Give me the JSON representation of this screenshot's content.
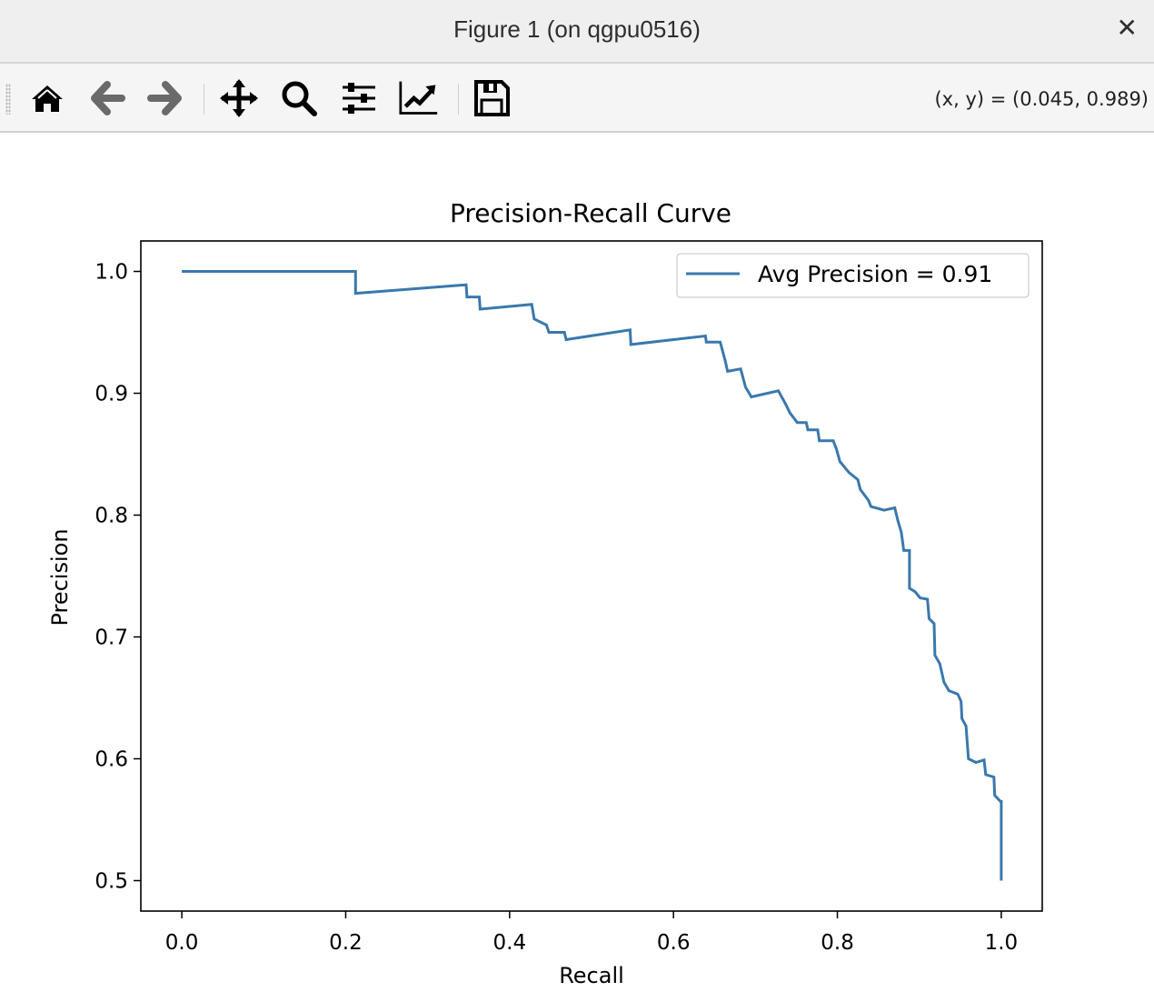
{
  "window": {
    "title": "Figure 1 (on qgpu0516)",
    "close_icon": "close-icon"
  },
  "toolbar": {
    "buttons": [
      {
        "icon": "home-icon"
      },
      {
        "icon": "back-arrow-icon"
      },
      {
        "icon": "forward-arrow-icon"
      },
      {
        "icon": "pan-icon"
      },
      {
        "icon": "zoom-icon"
      },
      {
        "icon": "configure-subplots-icon"
      },
      {
        "icon": "edit-axes-icon"
      },
      {
        "icon": "save-icon"
      }
    ],
    "coords": "(x, y) = (0.045, 0.989)"
  },
  "chart_data": {
    "type": "line",
    "title": "Precision-Recall Curve",
    "xlabel": "Recall",
    "ylabel": "Precision",
    "xlim": [
      -0.05,
      1.05
    ],
    "ylim": [
      0.475,
      1.025
    ],
    "xticks": [
      "0.0",
      "0.2",
      "0.4",
      "0.6",
      "0.8",
      "1.0"
    ],
    "yticks": [
      "0.5",
      "0.6",
      "0.7",
      "0.8",
      "0.9",
      "1.0"
    ],
    "grid": false,
    "legend_position": "top-right",
    "series": [
      {
        "name": "Avg Precision = 0.91",
        "color": "#3a78ad",
        "points": [
          [
            0,
            1.0
          ],
          [
            0.212,
            1.0
          ],
          [
            0.212,
            0.982
          ],
          [
            0.347,
            0.989
          ],
          [
            0.348,
            0.979
          ],
          [
            0.363,
            0.979
          ],
          [
            0.364,
            0.969
          ],
          [
            0.427,
            0.973
          ],
          [
            0.43,
            0.961
          ],
          [
            0.445,
            0.956
          ],
          [
            0.448,
            0.95
          ],
          [
            0.467,
            0.95
          ],
          [
            0.469,
            0.944
          ],
          [
            0.547,
            0.952
          ],
          [
            0.548,
            0.94
          ],
          [
            0.639,
            0.947
          ],
          [
            0.64,
            0.942
          ],
          [
            0.657,
            0.942
          ],
          [
            0.663,
            0.927
          ],
          [
            0.666,
            0.918
          ],
          [
            0.682,
            0.92
          ],
          [
            0.688,
            0.905
          ],
          [
            0.695,
            0.897
          ],
          [
            0.728,
            0.902
          ],
          [
            0.737,
            0.891
          ],
          [
            0.742,
            0.884
          ],
          [
            0.751,
            0.876
          ],
          [
            0.762,
            0.876
          ],
          [
            0.764,
            0.87
          ],
          [
            0.776,
            0.87
          ],
          [
            0.778,
            0.861
          ],
          [
            0.795,
            0.861
          ],
          [
            0.799,
            0.854
          ],
          [
            0.803,
            0.844
          ],
          [
            0.814,
            0.835
          ],
          [
            0.825,
            0.829
          ],
          [
            0.828,
            0.821
          ],
          [
            0.838,
            0.812
          ],
          [
            0.841,
            0.807
          ],
          [
            0.857,
            0.804
          ],
          [
            0.87,
            0.806
          ],
          [
            0.874,
            0.795
          ],
          [
            0.878,
            0.786
          ],
          [
            0.881,
            0.771
          ],
          [
            0.888,
            0.771
          ],
          [
            0.888,
            0.74
          ],
          [
            0.895,
            0.737
          ],
          [
            0.901,
            0.732
          ],
          [
            0.91,
            0.731
          ],
          [
            0.912,
            0.715
          ],
          [
            0.918,
            0.711
          ],
          [
            0.919,
            0.685
          ],
          [
            0.925,
            0.678
          ],
          [
            0.93,
            0.663
          ],
          [
            0.936,
            0.656
          ],
          [
            0.947,
            0.653
          ],
          [
            0.951,
            0.647
          ],
          [
            0.952,
            0.633
          ],
          [
            0.957,
            0.627
          ],
          [
            0.96,
            0.6
          ],
          [
            0.969,
            0.597
          ],
          [
            0.979,
            0.599
          ],
          [
            0.981,
            0.587
          ],
          [
            0.991,
            0.585
          ],
          [
            0.992,
            0.57
          ],
          [
            0.999,
            0.565
          ],
          [
            1.0,
            0.565
          ],
          [
            1.0,
            0.5
          ]
        ]
      }
    ]
  }
}
